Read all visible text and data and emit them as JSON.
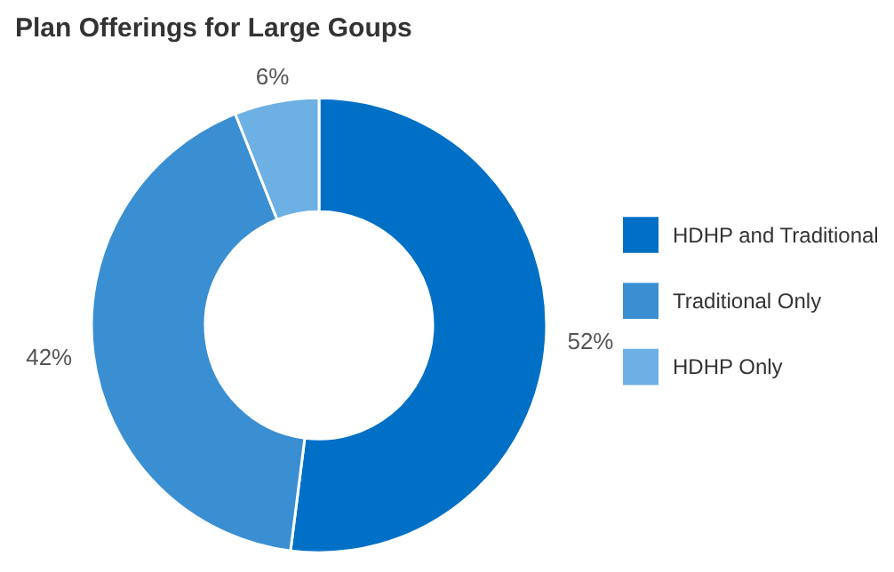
{
  "chart_data": {
    "type": "donut",
    "title": "Plan Offerings for Large Goups",
    "categories": [
      "HDHP and Traditional",
      "Traditional Only",
      "HDHP Only"
    ],
    "values": [
      52,
      42,
      6
    ],
    "colors": [
      "#0070c6",
      "#3a8fd2",
      "#6db0e4"
    ],
    "value_labels": [
      "52%",
      "42%",
      "6%"
    ],
    "legend": "right"
  }
}
